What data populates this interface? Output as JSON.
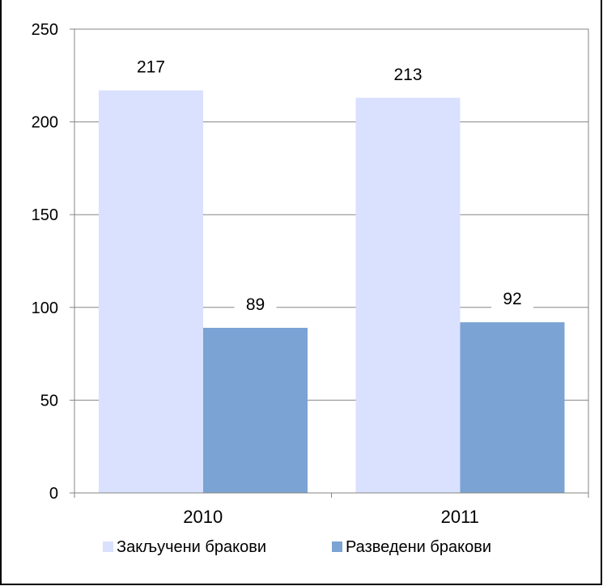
{
  "chart_data": {
    "type": "bar",
    "categories": [
      "2010",
      "2011"
    ],
    "series": [
      {
        "name": "Закључени бракови",
        "values": [
          217,
          213
        ],
        "color": "#d9e1ff"
      },
      {
        "name": "Разведени бракови",
        "values": [
          89,
          92
        ],
        "color": "#7ba3d4"
      }
    ],
    "ylim": [
      0,
      250
    ],
    "yticks": [
      0,
      50,
      100,
      150,
      200,
      250
    ],
    "grid": true,
    "data_labels": true,
    "legend_position": "bottom"
  }
}
